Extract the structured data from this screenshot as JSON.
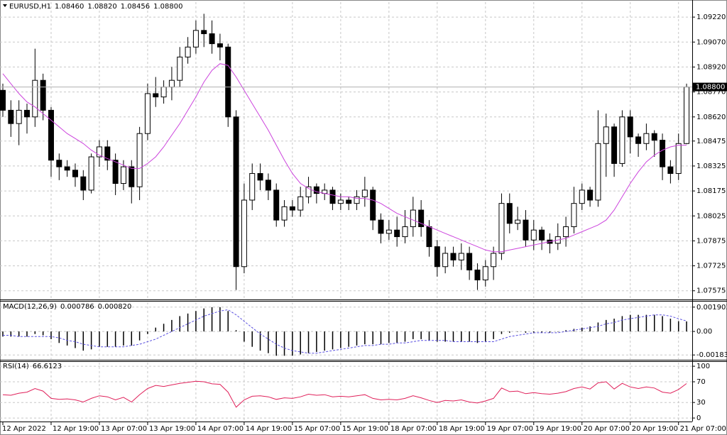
{
  "chart_data": [
    {
      "type": "candlestick",
      "title": "EURUSD,H1",
      "title_values": [
        "1.08460",
        "1.08820",
        "1.08456",
        "1.08800"
      ],
      "open": [
        1.0878,
        1.0866,
        1.0858,
        1.0866,
        1.0862,
        1.0884,
        1.0866,
        1.0836,
        1.0832,
        1.083,
        1.0826,
        1.0818,
        1.0838,
        1.0844,
        1.0836,
        1.0822,
        1.0832,
        1.082,
        1.0852,
        1.0876,
        1.0874,
        1.088,
        1.0884,
        1.0898,
        1.0904,
        1.0914,
        1.0912,
        1.0906,
        1.0904,
        1.0862,
        1.0772,
        1.0812,
        1.0828,
        1.0824,
        1.0818,
        1.08,
        1.0808,
        1.0806,
        1.0814,
        1.082,
        1.0816,
        1.0818,
        1.081,
        1.0812,
        1.081,
        1.0814,
        1.0818,
        1.08,
        1.0792,
        1.0794,
        1.079,
        1.0796,
        1.0806,
        1.0796,
        1.0784,
        1.0772,
        1.078,
        1.0776,
        1.078,
        1.077,
        1.0764,
        1.0772,
        1.078,
        1.081,
        1.0798,
        1.08,
        1.0788,
        1.0794,
        1.0788,
        1.0786,
        1.079,
        1.0796,
        1.081,
        1.0818,
        1.0812,
        1.0846,
        1.0856,
        1.0834,
        1.0862,
        1.085,
        1.0846,
        1.0852,
        1.0848,
        1.0832,
        1.0828,
        1.0846
      ],
      "high": [
        1.0882,
        1.0872,
        1.0872,
        1.087,
        1.0903,
        1.0888,
        1.0868,
        1.084,
        1.0836,
        1.0834,
        1.083,
        1.084,
        1.0848,
        1.0848,
        1.084,
        1.0836,
        1.0836,
        1.0856,
        1.0882,
        1.0886,
        1.0884,
        1.0892,
        1.0904,
        1.091,
        1.092,
        1.0924,
        1.092,
        1.0912,
        1.0906,
        1.0866,
        1.0822,
        1.0834,
        1.0834,
        1.0828,
        1.0822,
        1.0812,
        1.0812,
        1.082,
        1.0826,
        1.0822,
        1.0822,
        1.082,
        1.0816,
        1.0814,
        1.0818,
        1.0826,
        1.082,
        1.0804,
        1.08,
        1.0802,
        1.0806,
        1.0814,
        1.0812,
        1.08,
        1.0788,
        1.0784,
        1.0784,
        1.0786,
        1.0784,
        1.0774,
        1.0776,
        1.0784,
        1.0816,
        1.0816,
        1.0808,
        1.0806,
        1.08,
        1.0796,
        1.0792,
        1.0798,
        1.0802,
        1.082,
        1.0822,
        1.082,
        1.0866,
        1.0864,
        1.0858,
        1.0866,
        1.0866,
        1.0852,
        1.0858,
        1.0854,
        1.0852,
        1.0836,
        1.0852,
        1.0882
      ],
      "low": [
        1.0862,
        1.085,
        1.0845,
        1.0852,
        1.0856,
        1.086,
        1.0826,
        1.0824,
        1.0826,
        1.082,
        1.0812,
        1.0816,
        1.0832,
        1.083,
        1.0815,
        1.0818,
        1.081,
        1.0812,
        1.0848,
        1.0868,
        1.087,
        1.0872,
        1.088,
        1.0894,
        1.09,
        1.0904,
        1.09,
        1.0896,
        1.0856,
        1.0758,
        1.0768,
        1.0806,
        1.0818,
        1.0812,
        1.0796,
        1.0796,
        1.0802,
        1.0802,
        1.081,
        1.081,
        1.0812,
        1.0806,
        1.0806,
        1.0806,
        1.0806,
        1.0808,
        1.0794,
        1.0786,
        1.0788,
        1.0784,
        1.0786,
        1.079,
        1.079,
        1.0778,
        1.0766,
        1.0768,
        1.0772,
        1.077,
        1.0764,
        1.0758,
        1.076,
        1.0764,
        1.0776,
        1.0792,
        1.0794,
        1.0784,
        1.0782,
        1.0782,
        1.078,
        1.0782,
        1.0784,
        1.0792,
        1.0806,
        1.0808,
        1.0808,
        1.0826,
        1.0826,
        1.0832,
        1.084,
        1.0838,
        1.0842,
        1.0838,
        1.0824,
        1.0822,
        1.0824,
        1.08456
      ],
      "close": [
        1.0866,
        1.0858,
        1.0866,
        1.0862,
        1.0884,
        1.0866,
        1.0836,
        1.0832,
        1.083,
        1.0826,
        1.0818,
        1.0838,
        1.0844,
        1.0836,
        1.0822,
        1.0832,
        1.082,
        1.0852,
        1.0876,
        1.0874,
        1.088,
        1.0884,
        1.0898,
        1.0904,
        1.0914,
        1.0912,
        1.0906,
        1.0904,
        1.0862,
        1.0772,
        1.0812,
        1.0828,
        1.0824,
        1.0818,
        1.08,
        1.0808,
        1.0806,
        1.0814,
        1.082,
        1.0816,
        1.0818,
        1.081,
        1.0812,
        1.081,
        1.0814,
        1.0818,
        1.08,
        1.0792,
        1.0794,
        1.079,
        1.0796,
        1.0806,
        1.0796,
        1.0784,
        1.0772,
        1.078,
        1.0776,
        1.078,
        1.077,
        1.0764,
        1.0772,
        1.078,
        1.081,
        1.0798,
        1.08,
        1.0788,
        1.0794,
        1.0788,
        1.0786,
        1.079,
        1.0796,
        1.081,
        1.0818,
        1.0812,
        1.0846,
        1.0856,
        1.0834,
        1.0862,
        1.085,
        1.0846,
        1.0852,
        1.0848,
        1.0832,
        1.0828,
        1.0846,
        1.088
      ],
      "ma_values": [
        1.0888,
        1.0882,
        1.0876,
        1.0871,
        1.0868,
        1.0864,
        1.086,
        1.0856,
        1.0852,
        1.0849,
        1.0846,
        1.0842,
        1.0839,
        1.0837,
        1.0835,
        1.0833,
        1.0831,
        1.0831,
        1.0834,
        1.0838,
        1.0844,
        1.0851,
        1.0858,
        1.0866,
        1.0874,
        1.0883,
        1.089,
        1.0894,
        1.0893,
        1.0886,
        1.0878,
        1.087,
        1.0862,
        1.0854,
        1.0845,
        1.0836,
        1.0828,
        1.0822,
        1.0819,
        1.0817,
        1.0816,
        1.0815,
        1.0814,
        1.0814,
        1.0813,
        1.0813,
        1.0812,
        1.081,
        1.0807,
        1.0804,
        1.0802,
        1.08,
        1.0798,
        1.0796,
        1.0794,
        1.0792,
        1.079,
        1.0788,
        1.0786,
        1.0784,
        1.0782,
        1.0781,
        1.0781,
        1.0782,
        1.0783,
        1.0784,
        1.0785,
        1.0786,
        1.0787,
        1.0788,
        1.0789,
        1.0791,
        1.0793,
        1.0795,
        1.0797,
        1.08,
        1.0806,
        1.0814,
        1.0822,
        1.0829,
        1.0835,
        1.0839,
        1.0842,
        1.0844,
        1.0845,
        1.0845
      ],
      "ma_color": "#cc44dd",
      "up_color": "#ffffff",
      "down_color": "#000000",
      "current_price": {
        "value": 1.088,
        "label": "1.08800"
      },
      "ylim": [
        1.07527,
        1.0931
      ],
      "yticks": [
        {
          "value": 1.0922,
          "label": "1.09220"
        },
        {
          "value": 1.0907,
          "label": "1.09070"
        },
        {
          "value": 1.0892,
          "label": "1.08920"
        },
        {
          "value": 1.0877,
          "label": "1.08770"
        },
        {
          "value": 1.0862,
          "label": "1.08620"
        },
        {
          "value": 1.08475,
          "label": "1.08475"
        },
        {
          "value": 1.08325,
          "label": "1.08325"
        },
        {
          "value": 1.08175,
          "label": "1.08175"
        },
        {
          "value": 1.08025,
          "label": "1.08025"
        },
        {
          "value": 1.07875,
          "label": "1.07875"
        },
        {
          "value": 1.07725,
          "label": "1.07725"
        },
        {
          "value": 1.07575,
          "label": "1.07575"
        }
      ],
      "grid": true
    },
    {
      "type": "macd",
      "title": "MACD(12,26,9)",
      "title_values": [
        "0.000786",
        "0.000820"
      ],
      "series": [
        {
          "color": "#000000",
          "style": "histogram",
          "values": [
            -0.0004,
            -0.0004,
            -0.0004,
            -0.0004,
            -0.0002,
            -0.0003,
            -0.0006,
            -0.0009,
            -0.0011,
            -0.0013,
            -0.0015,
            -0.0014,
            -0.0012,
            -0.0012,
            -0.0012,
            -0.0011,
            -0.0011,
            -0.0007,
            -0.0002,
            0.0003,
            0.0006,
            0.0009,
            0.0012,
            0.0014,
            0.0016,
            0.0018,
            0.0019,
            0.0019,
            0.0016,
            0.0001,
            -0.0008,
            -0.0012,
            -0.0015,
            -0.0017,
            -0.0019,
            -0.0019,
            -0.0019,
            -0.0018,
            -0.0017,
            -0.0016,
            -0.0015,
            -0.0014,
            -0.0013,
            -0.0012,
            -0.0011,
            -0.001,
            -0.001,
            -0.001,
            -0.0009,
            -0.0009,
            -0.0008,
            -0.0006,
            -0.0006,
            -0.0007,
            -0.0008,
            -0.0008,
            -0.0008,
            -0.0008,
            -0.0008,
            -0.0009,
            -0.0008,
            -0.0006,
            -0.0002,
            -0.0001,
            0,
            -0.0001,
            -0.0001,
            -0.0001,
            -0.0001,
            0,
            0.0001,
            0.0002,
            0.0003,
            0.0004,
            0.0007,
            0.0009,
            0.001,
            0.0012,
            0.0013,
            0.0013,
            0.0013,
            0.0013,
            0.0012,
            0.001,
            0.0008,
            0.000786
          ]
        },
        {
          "color": "#5a50e0",
          "style": "dashed",
          "values": [
            -0.0003,
            -0.0003,
            -0.0004,
            -0.0004,
            -0.0004,
            -0.0004,
            -0.0004,
            -0.0005,
            -0.0007,
            -0.0008,
            -0.001,
            -0.0011,
            -0.0012,
            -0.0012,
            -0.0012,
            -0.0012,
            -0.0011,
            -0.001,
            -0.0008,
            -0.0006,
            -0.0003,
            0,
            0.0003,
            0.0006,
            0.0009,
            0.0012,
            0.0014,
            0.0016,
            0.0017,
            0.0013,
            0.0008,
            0.0003,
            -0.0002,
            -0.0006,
            -0.001,
            -0.0013,
            -0.0015,
            -0.0016,
            -0.0017,
            -0.0017,
            -0.0016,
            -0.0015,
            -0.0014,
            -0.0013,
            -0.0012,
            -0.0011,
            -0.0011,
            -0.001,
            -0.001,
            -0.0009,
            -0.0009,
            -0.0008,
            -0.0007,
            -0.0007,
            -0.0007,
            -0.0007,
            -0.0008,
            -0.0008,
            -0.0008,
            -0.0008,
            -0.0008,
            -0.0008,
            -0.0006,
            -0.0004,
            -0.0003,
            -0.0002,
            -0.0001,
            -0.0001,
            -0.0001,
            -0.0001,
            0,
            0.0001,
            0.0002,
            0.0003,
            0.0004,
            0.0006,
            0.0007,
            0.0009,
            0.001,
            0.0011,
            0.0012,
            0.0013,
            0.0013,
            0.0012,
            0.001,
            0.00082
          ]
        }
      ],
      "ylim": [
        -0.00216,
        0.00228
      ],
      "yticks": [
        0.001903,
        {
          "value": 0,
          "label": "0.00"
        },
        -0.001839
      ]
    },
    {
      "type": "line",
      "title": "RSI(14)",
      "title_values": [
        "66.6123"
      ],
      "values": [
        45,
        44,
        48,
        50,
        57,
        52,
        38,
        36,
        37,
        35,
        31,
        38,
        43,
        41,
        35,
        40,
        31,
        45,
        57,
        63,
        61,
        64,
        67,
        69,
        71,
        70,
        66,
        65,
        50,
        21,
        35,
        42,
        43,
        41,
        36,
        39,
        38,
        41,
        46,
        44,
        45,
        41,
        42,
        41,
        43,
        45,
        38,
        35,
        36,
        35,
        38,
        43,
        39,
        34,
        30,
        34,
        33,
        35,
        31,
        29,
        33,
        38,
        58,
        51,
        52,
        47,
        49,
        47,
        46,
        48,
        51,
        57,
        60,
        56,
        68,
        70,
        56,
        67,
        60,
        57,
        60,
        58,
        50,
        48,
        55,
        66.6123
      ],
      "color": "#e0205a",
      "ylim": [
        -4,
        107
      ],
      "yticks": [
        100,
        70,
        30,
        0
      ],
      "categories": [
        "12 Apr 2022",
        null,
        null,
        null,
        null,
        null,
        "12 Apr 19:00",
        null,
        null,
        null,
        null,
        null,
        "13 Apr 07:00",
        null,
        null,
        null,
        null,
        null,
        "13 Apr 19:00",
        null,
        null,
        null,
        null,
        null,
        "14 Apr 07:00",
        null,
        null,
        null,
        null,
        null,
        "14 Apr 19:00",
        null,
        null,
        null,
        null,
        null,
        "15 Apr 07:00",
        null,
        null,
        null,
        null,
        null,
        "15 Apr 19:00",
        null,
        null,
        null,
        null,
        null,
        "18 Apr 07:00",
        null,
        null,
        null,
        null,
        null,
        "18 Apr 19:00",
        null,
        null,
        null,
        null,
        null,
        "19 Apr 07:00",
        null,
        null,
        null,
        null,
        null,
        "19 Apr 19:00",
        null,
        null,
        null,
        null,
        null,
        "20 Apr 07:00",
        null,
        null,
        null,
        null,
        null,
        "20 Apr 19:00",
        null,
        null,
        null,
        null,
        null,
        "21 Apr 07:00",
        null
      ]
    }
  ]
}
